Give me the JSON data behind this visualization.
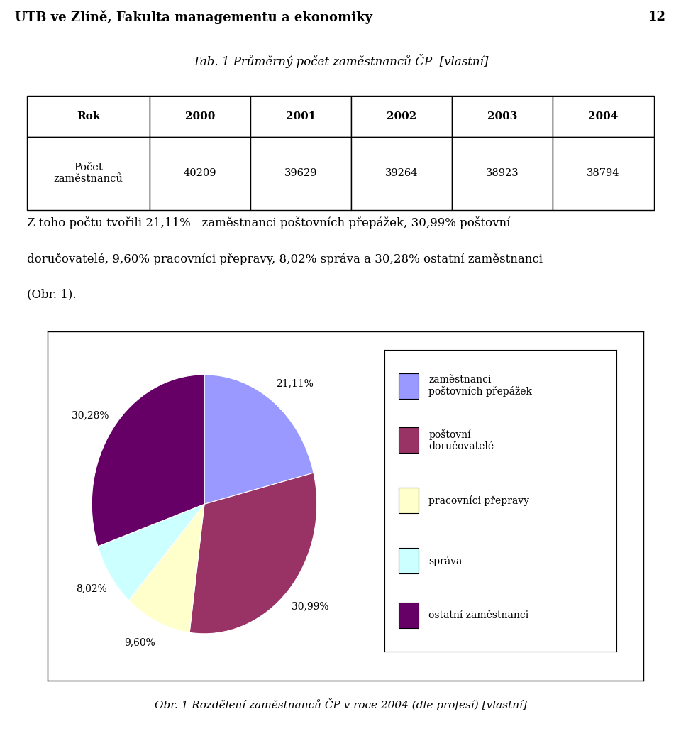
{
  "header_text": "UTB ve Zlíně, Fakulta managementu a ekonomiky",
  "page_number": "12",
  "table_title": "Tab. 1 Průměrný počet zaměstnanců ČP  [vlastní]",
  "table_headers": [
    "Rok",
    "2000",
    "2001",
    "2002",
    "2003",
    "2004"
  ],
  "table_row1": [
    "Počet\nzaměstnanců",
    "40209",
    "39629",
    "39264",
    "38923",
    "38794"
  ],
  "body_text_line1": "Z toho počtu tvořili 21,11%   zaměstnanci poštovních přepážek, 30,99% poštovní",
  "body_text_line2": "doručovatelé, 9,60% pracovníci přepravy, 8,02% správa a 30,28% ostatní zaměstnanci",
  "body_text_line3": "(Obr. 1).",
  "pie_values": [
    21.11,
    30.99,
    9.6,
    8.02,
    30.28
  ],
  "pie_labels_on_chart": [
    "21,11%",
    "30,99%",
    "9,60%",
    "8,02%",
    "30,28%"
  ],
  "pie_colors": [
    "#9999FF",
    "#993366",
    "#FFFFCC",
    "#CCFFFF",
    "#660066"
  ],
  "legend_labels": [
    "zaměstnanci\npoštovních přepážek",
    "poštovní\ndoručovatelé",
    "pracovníci přepravy",
    "správa",
    "ostatní zaměstnanci"
  ],
  "caption_text": "Obr. 1 Rozdělení zaměstnanců ČP v roce 2004 (dle profesí) [vlastní]",
  "bg_color": "#ffffff",
  "pie_label_r": 1.18,
  "pie_startangle": 90,
  "pie_label_fontsize": 10,
  "legend_fontsize": 10,
  "table_fontsize": 11,
  "header_fontsize": 13,
  "body_fontsize": 12,
  "caption_fontsize": 11
}
